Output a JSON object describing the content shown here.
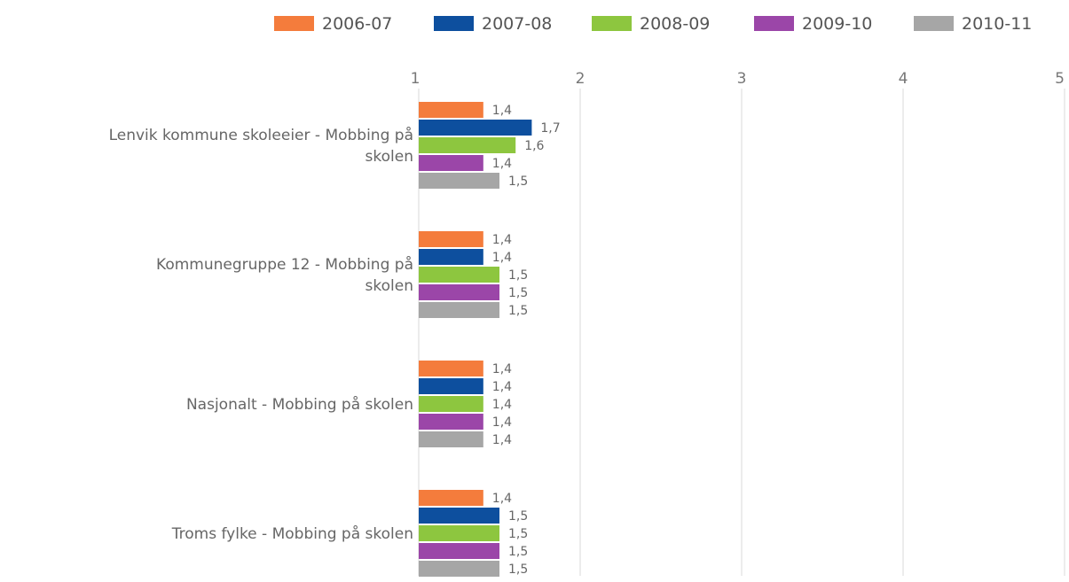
{
  "chart_data": {
    "type": "bar",
    "orientation": "horizontal",
    "xlim": [
      1,
      5
    ],
    "ticks": [
      "1",
      "2",
      "3",
      "4",
      "5"
    ],
    "grid": true,
    "legend_position": "top-right",
    "categories": [
      [
        "Lenvik kommune skoleeier - Mobbing på",
        "skolen"
      ],
      [
        "Kommunegruppe 12 - Mobbing på",
        "skolen"
      ],
      [
        "Nasjonalt - Mobbing på skolen"
      ],
      [
        "Troms fylke - Mobbing på skolen"
      ]
    ],
    "series": [
      {
        "name": "2006-07",
        "color": "#f47c3c",
        "values": [
          1.4,
          1.4,
          1.4,
          1.4
        ],
        "labels": [
          "1,4",
          "1,4",
          "1,4",
          "1,4"
        ]
      },
      {
        "name": "2007-08",
        "color": "#0d4f9e",
        "values": [
          1.7,
          1.4,
          1.4,
          1.5
        ],
        "labels": [
          "1,7",
          "1,4",
          "1,4",
          "1,5"
        ]
      },
      {
        "name": "2008-09",
        "color": "#8dc63f",
        "values": [
          1.6,
          1.5,
          1.4,
          1.5
        ],
        "labels": [
          "1,6",
          "1,5",
          "1,4",
          "1,5"
        ]
      },
      {
        "name": "2009-10",
        "color": "#9b46a8",
        "values": [
          1.4,
          1.5,
          1.4,
          1.5
        ],
        "labels": [
          "1,4",
          "1,5",
          "1,4",
          "1,5"
        ]
      },
      {
        "name": "2010-11",
        "color": "#a6a6a6",
        "values": [
          1.5,
          1.5,
          1.4,
          1.5
        ],
        "labels": [
          "1,5",
          "1,5",
          "1,4",
          "1,5"
        ]
      }
    ]
  }
}
